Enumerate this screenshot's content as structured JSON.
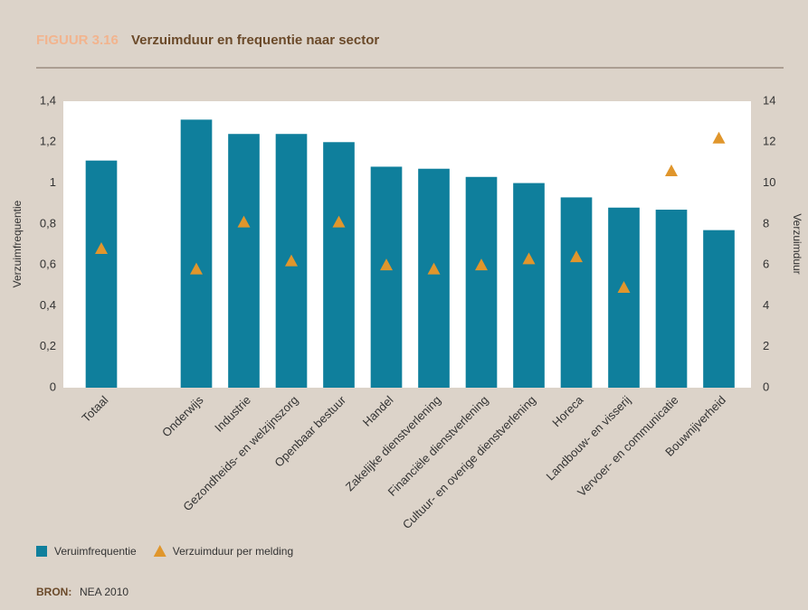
{
  "chart_data": {
    "type": "bar",
    "figure_label": "FIGUUR 3.16",
    "title": "Verzuimduur en frequentie naar sector",
    "categories": [
      "Totaal",
      null,
      "Onderwijs",
      "Industrie",
      "Gezondheids- en welzijnszorg",
      "Openbaar bestuur",
      "Handel",
      "Zakelijke dienstverlening",
      "Financiële dienstverlening",
      "Cultuur- en overige dienstverlening",
      "Horeca",
      "Landbouw- en visserij",
      "Vervoer- en communicatie",
      "Bouwnijverheid"
    ],
    "series": [
      {
        "name": "Veruimfrequentie",
        "type": "bar",
        "color": "#0f7f9c",
        "values": [
          1.11,
          null,
          1.31,
          1.24,
          1.24,
          1.2,
          1.08,
          1.07,
          1.03,
          1.0,
          0.93,
          0.88,
          0.87,
          0.77
        ]
      },
      {
        "name": "Verzuimduur per melding",
        "type": "triangle",
        "axis": "y2",
        "color": "#e0962c",
        "values": [
          6.8,
          null,
          5.8,
          8.1,
          6.2,
          8.1,
          6.0,
          5.8,
          6.0,
          6.3,
          6.4,
          4.9,
          10.6,
          12.2
        ]
      }
    ],
    "ylabel": "Verzuimfrequentie",
    "y2label": "Verzuimduur",
    "ylim": [
      0,
      1.4
    ],
    "yticks": [
      0,
      {
        "value": 0.2,
        "label": "0,2"
      },
      {
        "value": 0.4,
        "label": "0,4"
      },
      {
        "value": 0.6,
        "label": "0,6"
      },
      {
        "value": 0.8,
        "label": "0,8"
      },
      1,
      {
        "value": 1.2,
        "label": "1,2"
      },
      {
        "value": 1.4,
        "label": "1,4"
      }
    ],
    "y2lim": [
      0,
      14
    ],
    "y2ticks": [
      0,
      2,
      4,
      6,
      8,
      10,
      12,
      14
    ],
    "source_label": "BRON:",
    "source": "NEA 2010"
  }
}
